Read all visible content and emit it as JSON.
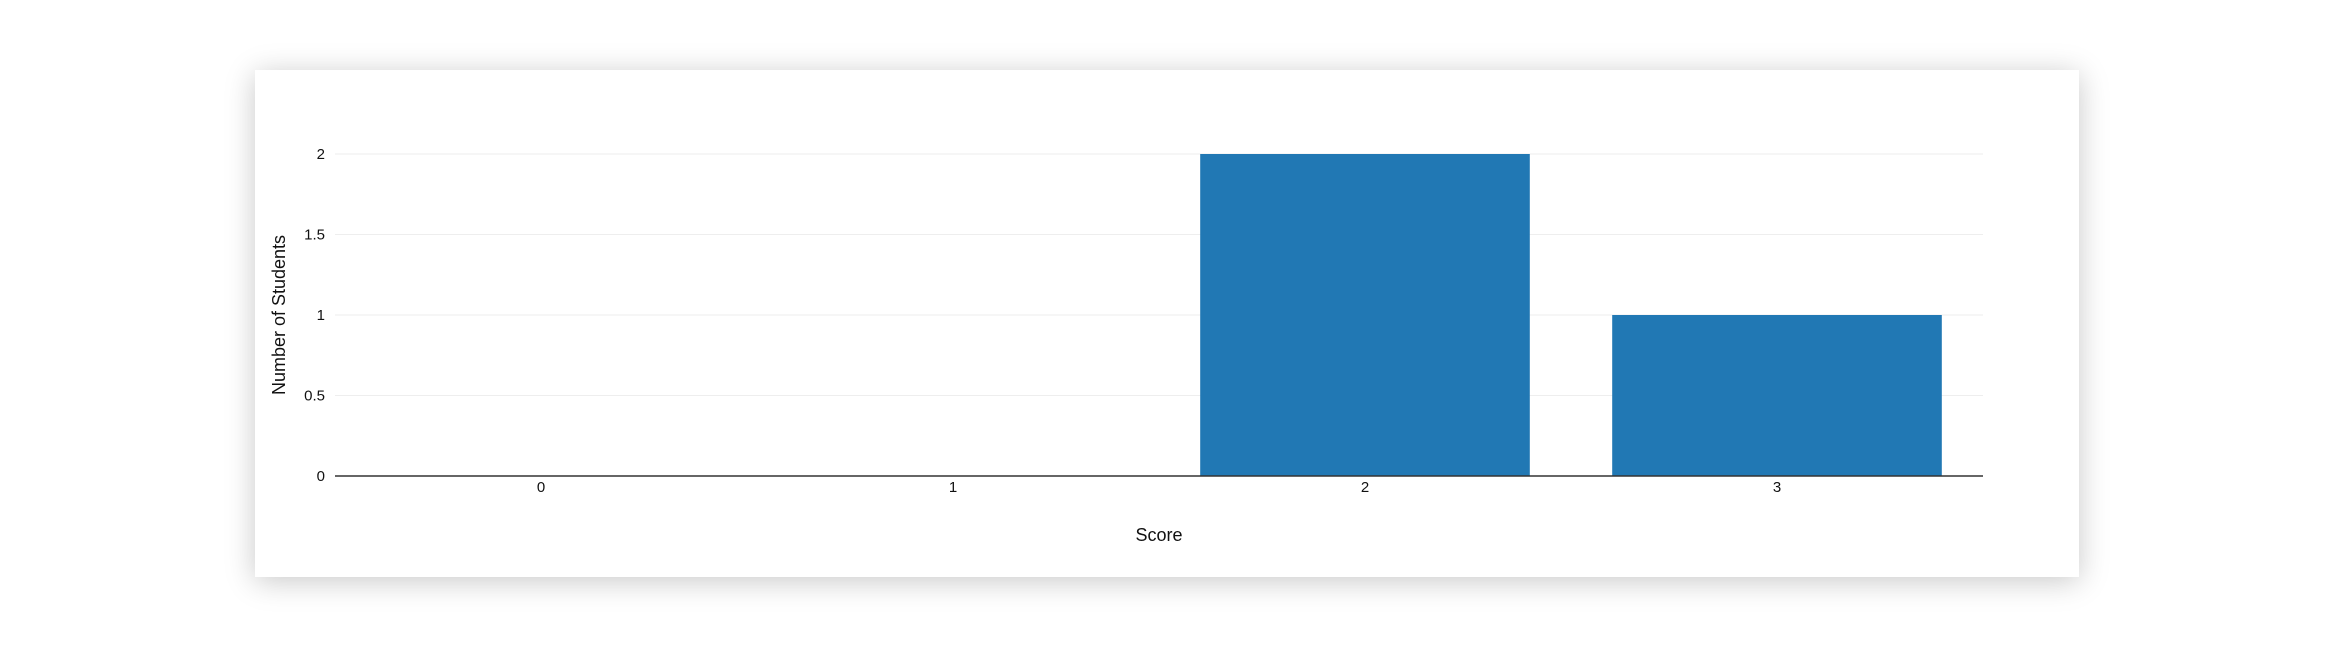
{
  "chart_data": {
    "type": "bar",
    "categories": [
      "0",
      "1",
      "2",
      "3"
    ],
    "values": [
      0,
      0,
      2,
      1
    ],
    "xlabel": "Score",
    "ylabel": "Number of Students",
    "ylim": [
      0,
      2
    ],
    "yticks": [
      "0",
      "0.5",
      "1",
      "1.5",
      "2"
    ],
    "ytick_values": [
      0,
      0.5,
      1,
      1.5,
      2
    ],
    "grid": true,
    "bar_color": "#2178b4",
    "grid_color": "#eeeeee",
    "axis_color": "#333333"
  }
}
